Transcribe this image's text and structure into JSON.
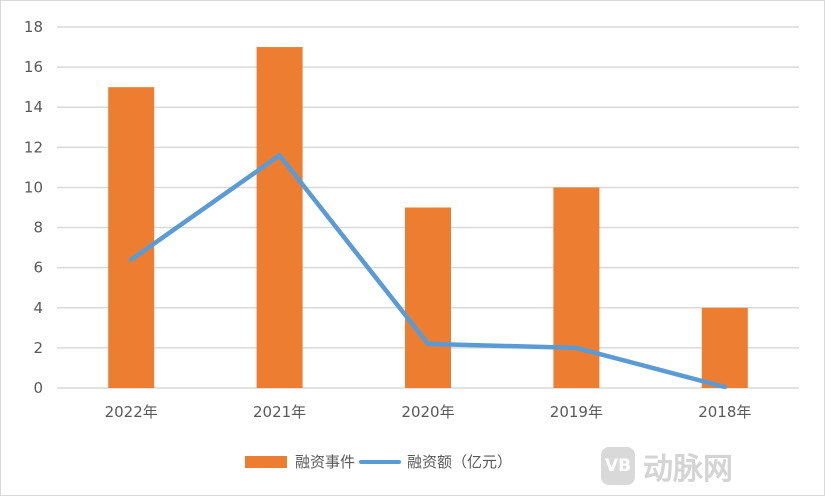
{
  "chart_data": {
    "type": "bar",
    "categories": [
      "2022年",
      "2021年",
      "2020年",
      "2019年",
      "2018年"
    ],
    "series": [
      {
        "name": "融资事件",
        "type": "bar",
        "color": "#ed7d31",
        "values": [
          15,
          17,
          9,
          10,
          4
        ]
      },
      {
        "name": "融资额（亿元）",
        "type": "line",
        "color": "#5b9bd5",
        "values": [
          6.4,
          11.6,
          2.2,
          2.0,
          0.05
        ]
      }
    ],
    "ylim": [
      0,
      18
    ],
    "yticks": [
      0,
      2,
      4,
      6,
      8,
      10,
      12,
      14,
      16,
      18
    ],
    "grid": true,
    "legend": "bottom"
  },
  "watermark": {
    "logo": "VB",
    "text": "动脉网"
  }
}
